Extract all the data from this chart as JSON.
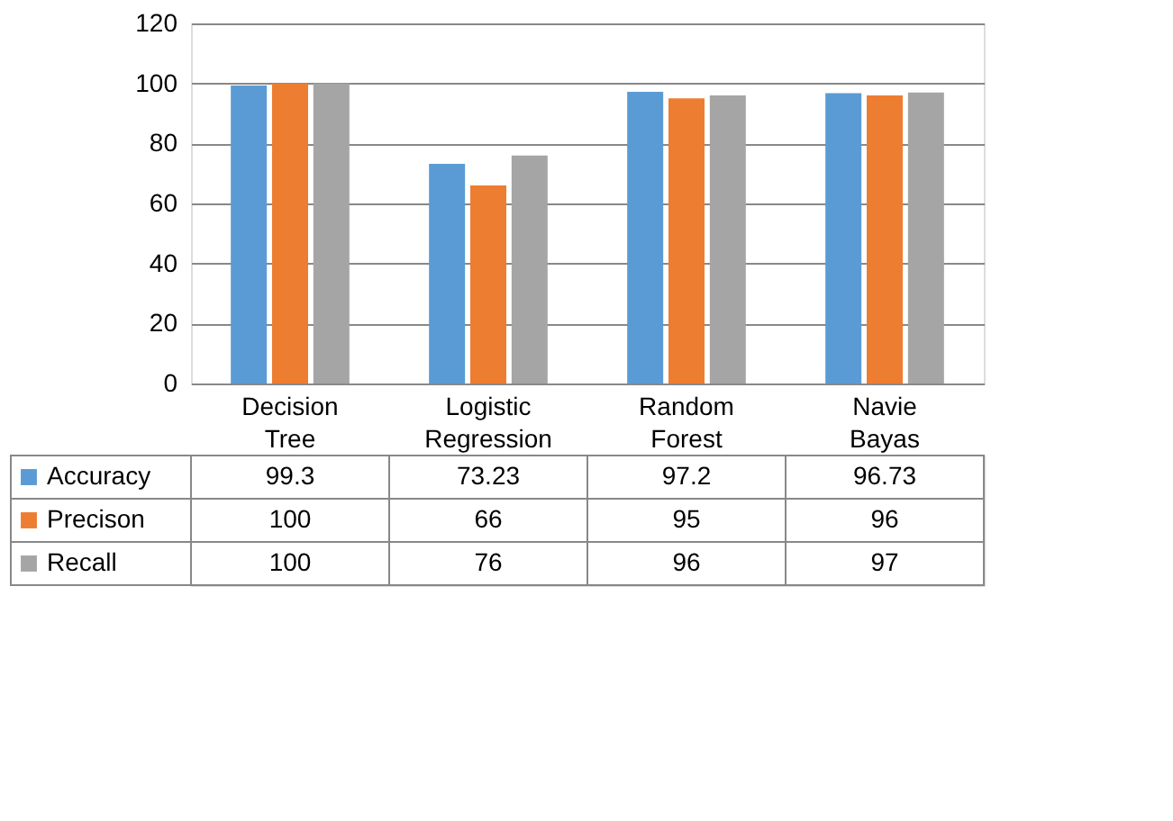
{
  "chart_data": {
    "type": "bar",
    "categories": [
      "Decision Tree",
      "Logistic Regression",
      "Random Forest",
      "Navie Bayas"
    ],
    "series": [
      {
        "name": "Accuracy",
        "color": "#5b9bd5",
        "values": [
          99.3,
          73.23,
          97.2,
          96.73
        ]
      },
      {
        "name": "Precison",
        "color": "#ed7d31",
        "values": [
          100,
          66,
          95,
          96
        ]
      },
      {
        "name": "Recall",
        "color": "#a5a5a5",
        "values": [
          100,
          76,
          96,
          97
        ]
      }
    ],
    "ylim": [
      0,
      120
    ],
    "yticks": [
      0,
      20,
      40,
      60,
      80,
      100,
      120
    ],
    "grid": "y",
    "data_labels": true,
    "legend": "bottom"
  }
}
